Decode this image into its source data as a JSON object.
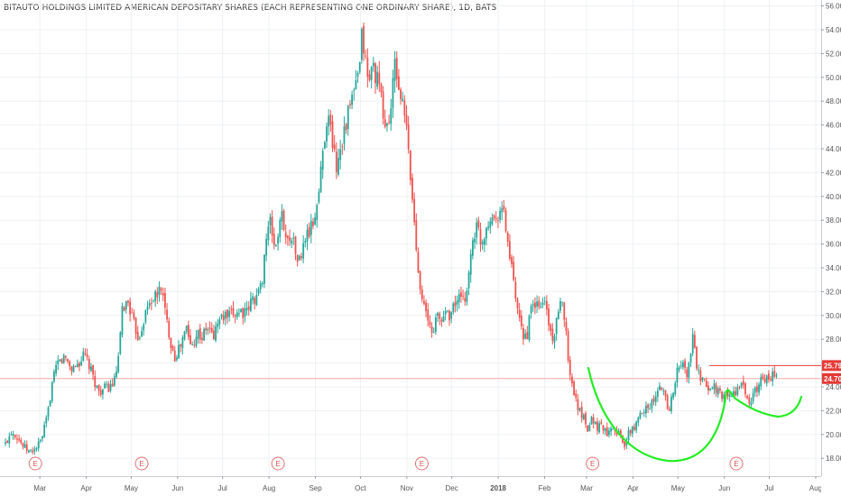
{
  "title": "BITAUTO HOLDINGS LIMITED AMERICAN DEPOSITARY SHARES (EACH REPRESENTING ONE ORDINARY SHARE), 1D, BATS",
  "colors": {
    "up": "#26a69a",
    "down": "#ef5350",
    "grid": "#eef0f3",
    "price_tag": "#e53935",
    "price_line": "#f3a8a8",
    "annotation": "#22ee22",
    "axis_text": "#555555"
  },
  "chart_data": {
    "type": "candlestick",
    "symbol_title": "BITAUTO HOLDINGS LIMITED AMERICAN DEPOSITARY SHARES (EACH REPRESENTING ONE ORDINARY SHARE), 1D, BATS",
    "ylim": [
      16.5,
      56.5
    ],
    "y_ticks": [
      "18.00",
      "20.00",
      "22.00",
      "24.00",
      "26.00",
      "28.00",
      "30.00",
      "32.00",
      "34.00",
      "36.00",
      "38.00",
      "40.00",
      "42.00",
      "44.00",
      "46.00",
      "48.00",
      "50.00",
      "52.00",
      "54.00",
      "56.00"
    ],
    "x_labels": [
      {
        "label": "Mar",
        "day": 23
      },
      {
        "label": "Apr",
        "day": 54
      },
      {
        "label": "May",
        "day": 84
      },
      {
        "label": "Jun",
        "day": 115
      },
      {
        "label": "Jul",
        "day": 145
      },
      {
        "label": "Aug",
        "day": 176
      },
      {
        "label": "Sep",
        "day": 207
      },
      {
        "label": "Oct",
        "day": 237
      },
      {
        "label": "Nov",
        "day": 268
      },
      {
        "label": "Dec",
        "day": 298
      },
      {
        "label": "2018",
        "day": 329
      },
      {
        "label": "Feb",
        "day": 360
      },
      {
        "label": "Mar",
        "day": 388
      },
      {
        "label": "Apr",
        "day": 419
      },
      {
        "label": "May",
        "day": 449
      },
      {
        "label": "Jun",
        "day": 480
      },
      {
        "label": "Jul",
        "day": 510
      },
      {
        "label": "Aug",
        "day": 541
      }
    ],
    "x_range": [
      0,
      541
    ],
    "earnings_markers": [
      {
        "label": "E",
        "day": 20
      },
      {
        "label": "E",
        "day": 91
      },
      {
        "label": "E",
        "day": 182
      },
      {
        "label": "E",
        "day": 278
      },
      {
        "label": "E",
        "day": 392
      },
      {
        "label": "E",
        "day": 488
      }
    ],
    "price_levels": [
      {
        "label": "25.79",
        "value": 25.79
      },
      {
        "label": "24.70",
        "value": 24.7
      }
    ],
    "close_path": [
      [
        0,
        19.2
      ],
      [
        4,
        20.3
      ],
      [
        7,
        20.0
      ],
      [
        12,
        19.0
      ],
      [
        16,
        18.5
      ],
      [
        20,
        18.8
      ],
      [
        24,
        19.5
      ],
      [
        28,
        21.5
      ],
      [
        31,
        24.2
      ],
      [
        35,
        26.0
      ],
      [
        40,
        26.5
      ],
      [
        44,
        25.5
      ],
      [
        49,
        26.0
      ],
      [
        53,
        26.7
      ],
      [
        58,
        25.0
      ],
      [
        62,
        23.6
      ],
      [
        67,
        23.9
      ],
      [
        70,
        24.0
      ],
      [
        73,
        24.5
      ],
      [
        76,
        26.8
      ],
      [
        78,
        30.5
      ],
      [
        82,
        31.2
      ],
      [
        85,
        29.5
      ],
      [
        89,
        28.1
      ],
      [
        93,
        30.0
      ],
      [
        97,
        31.3
      ],
      [
        101,
        31.6
      ],
      [
        104,
        32.5
      ],
      [
        107,
        30.0
      ],
      [
        110,
        28.0
      ],
      [
        113,
        26.5
      ],
      [
        117,
        27.5
      ],
      [
        121,
        29.0
      ],
      [
        124,
        27.2
      ],
      [
        128,
        28.7
      ],
      [
        131,
        28.1
      ],
      [
        135,
        29.0
      ],
      [
        139,
        28.2
      ],
      [
        142,
        29.6
      ],
      [
        146,
        29.9
      ],
      [
        150,
        29.9
      ],
      [
        153,
        30.2
      ],
      [
        157,
        30.4
      ],
      [
        161,
        30.1
      ],
      [
        164,
        31.2
      ],
      [
        168,
        31.7
      ],
      [
        171,
        32.5
      ],
      [
        174,
        36.5
      ],
      [
        177,
        37.8
      ],
      [
        180,
        35.5
      ],
      [
        183,
        37.5
      ],
      [
        185,
        38.5
      ],
      [
        188,
        36.0
      ],
      [
        191,
        37.0
      ],
      [
        194,
        35.0
      ],
      [
        197,
        34.5
      ],
      [
        200,
        36.5
      ],
      [
        203,
        37.0
      ],
      [
        206,
        38.0
      ],
      [
        209,
        40.0
      ],
      [
        212,
        44.0
      ],
      [
        215,
        47.0
      ],
      [
        218,
        45.0
      ],
      [
        221,
        42.5
      ],
      [
        224,
        44.5
      ],
      [
        227,
        46.0
      ],
      [
        230,
        47.5
      ],
      [
        233,
        49.0
      ],
      [
        236,
        50.0
      ],
      [
        238,
        53.5
      ],
      [
        240,
        52.0
      ],
      [
        242,
        49.5
      ],
      [
        245,
        51.0
      ],
      [
        248,
        50.0
      ],
      [
        251,
        48.0
      ],
      [
        254,
        45.5
      ],
      [
        257,
        47.0
      ],
      [
        260,
        51.0
      ],
      [
        263,
        49.0
      ],
      [
        266,
        47.0
      ],
      [
        268,
        45.5
      ],
      [
        270,
        42.0
      ],
      [
        272,
        39.5
      ],
      [
        274,
        36.0
      ],
      [
        276,
        33.5
      ],
      [
        279,
        31.0
      ],
      [
        282,
        29.5
      ],
      [
        285,
        28.5
      ],
      [
        288,
        30.0
      ],
      [
        291,
        29.5
      ],
      [
        294,
        30.5
      ],
      [
        297,
        30.0
      ],
      [
        300,
        31.0
      ],
      [
        303,
        31.5
      ],
      [
        306,
        31.0
      ],
      [
        309,
        33.0
      ],
      [
        312,
        36.5
      ],
      [
        315,
        37.5
      ],
      [
        318,
        36.0
      ],
      [
        321,
        37.5
      ],
      [
        324,
        38.5
      ],
      [
        327,
        38.0
      ],
      [
        330,
        39.0
      ],
      [
        333,
        38.5
      ],
      [
        336,
        35.5
      ],
      [
        339,
        33.0
      ],
      [
        342,
        30.0
      ],
      [
        345,
        28.5
      ],
      [
        348,
        28.2
      ],
      [
        351,
        30.5
      ],
      [
        354,
        31.0
      ],
      [
        357,
        30.5
      ],
      [
        360,
        31.5
      ],
      [
        363,
        29.0
      ],
      [
        366,
        28.0
      ],
      [
        369,
        30.0
      ],
      [
        372,
        31.5
      ],
      [
        374,
        29.0
      ],
      [
        377,
        24.8
      ],
      [
        380,
        23.5
      ],
      [
        383,
        22.0
      ],
      [
        386,
        21.5
      ],
      [
        389,
        20.5
      ],
      [
        392,
        21.5
      ],
      [
        395,
        20.5
      ],
      [
        398,
        21.0
      ],
      [
        401,
        20.0
      ],
      [
        404,
        20.8
      ],
      [
        407,
        20.5
      ],
      [
        410,
        20.0
      ],
      [
        413,
        19.0
      ],
      [
        416,
        20.0
      ],
      [
        419,
        20.5
      ],
      [
        422,
        21.0
      ],
      [
        425,
        22.0
      ],
      [
        428,
        22.5
      ],
      [
        431,
        22.5
      ],
      [
        434,
        23.0
      ],
      [
        437,
        24.0
      ],
      [
        440,
        23.5
      ],
      [
        443,
        22.0
      ],
      [
        446,
        23.8
      ],
      [
        449,
        25.5
      ],
      [
        452,
        26.0
      ],
      [
        455,
        25.0
      ],
      [
        457,
        26.2
      ],
      [
        459,
        28.5
      ],
      [
        461,
        26.0
      ],
      [
        464,
        24.5
      ],
      [
        467,
        24.2
      ],
      [
        470,
        23.8
      ],
      [
        473,
        24.2
      ],
      [
        476,
        23.5
      ],
      [
        479,
        23.0
      ],
      [
        482,
        23.6
      ],
      [
        485,
        23.0
      ],
      [
        488,
        23.8
      ],
      [
        491,
        24.2
      ],
      [
        494,
        23.5
      ],
      [
        497,
        22.5
      ],
      [
        500,
        23.5
      ],
      [
        503,
        24.2
      ],
      [
        506,
        25.0
      ],
      [
        509,
        24.5
      ],
      [
        512,
        25.0
      ],
      [
        515,
        24.7
      ]
    ]
  }
}
